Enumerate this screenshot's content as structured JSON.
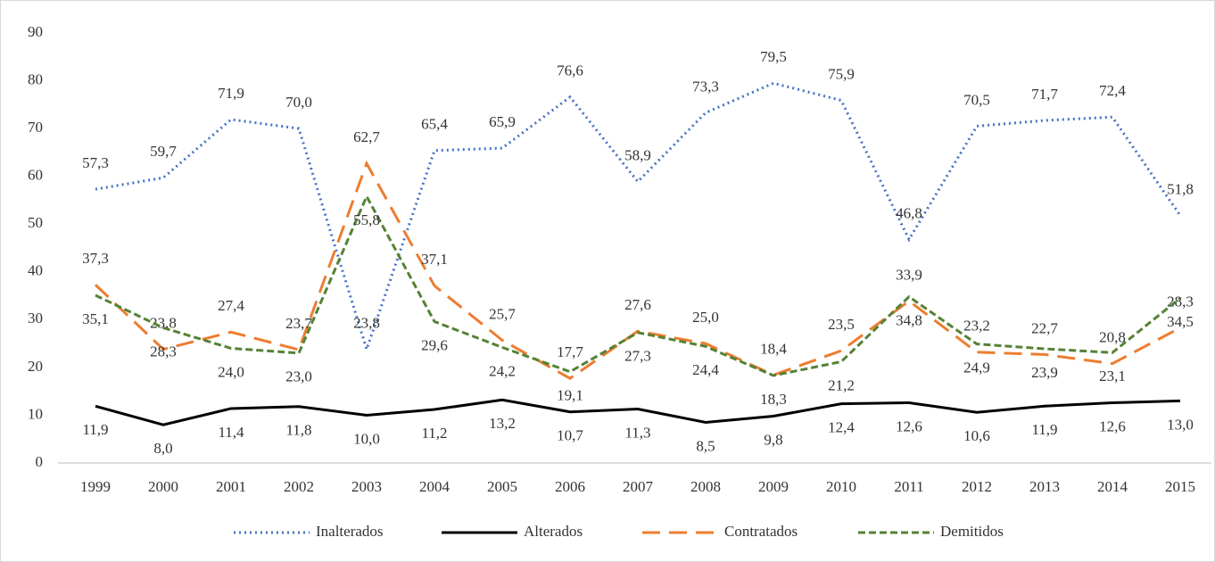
{
  "chart_data": {
    "type": "line",
    "categories": [
      "1999",
      "2000",
      "2001",
      "2002",
      "2003",
      "2004",
      "2005",
      "2006",
      "2007",
      "2008",
      "2009",
      "2010",
      "2011",
      "2012",
      "2013",
      "2014",
      "2015"
    ],
    "series": [
      {
        "name": "Inalterados",
        "color": "#4472c4",
        "style": "dotted",
        "values": [
          57.3,
          59.7,
          71.9,
          70.0,
          23.8,
          65.4,
          65.9,
          76.6,
          58.9,
          73.3,
          79.5,
          75.9,
          46.8,
          70.5,
          71.7,
          72.4,
          51.8
        ],
        "value_labels": [
          "57,3",
          "59,7",
          "71,9",
          "70,0",
          "23,8",
          "65,4",
          "65,9",
          "76,6",
          "58,9",
          "73,3",
          "79,5",
          "75,9",
          "46,8",
          "70,5",
          "71,7",
          "72,4",
          "51,8"
        ]
      },
      {
        "name": "Alterados",
        "color": "#000000",
        "style": "solid",
        "values": [
          11.9,
          8.0,
          11.4,
          11.8,
          10.0,
          11.2,
          13.2,
          10.7,
          11.3,
          8.5,
          9.8,
          12.4,
          12.6,
          10.6,
          11.9,
          12.6,
          13.0
        ],
        "value_labels": [
          "11,9",
          "8,0",
          "11,4",
          "11,8",
          "10,0",
          "11,2",
          "13,2",
          "10,7",
          "11,3",
          "8,5",
          "9,8",
          "12,4",
          "12,6",
          "10,6",
          "11,9",
          "12,6",
          "13,0"
        ]
      },
      {
        "name": "Contratados",
        "color": "#ed7d31",
        "style": "longdash",
        "values": [
          37.3,
          23.8,
          27.4,
          23.7,
          62.7,
          37.1,
          25.7,
          17.7,
          27.6,
          25.0,
          18.4,
          23.5,
          33.9,
          23.2,
          22.7,
          20.8,
          28.3
        ],
        "value_labels": [
          "37,3",
          "23,8",
          "27,4",
          "23,7",
          "62,7",
          "37,1",
          "25,7",
          "17,7",
          "27,6",
          "25,0",
          "18,4",
          "23,5",
          "33,9",
          "23,2",
          "22,7",
          "20,8",
          "28,3"
        ]
      },
      {
        "name": "Demitidos",
        "color": "#548235",
        "style": "dash",
        "values": [
          35.1,
          28.3,
          24.0,
          23.0,
          55.8,
          29.6,
          24.2,
          19.1,
          27.3,
          24.4,
          18.3,
          21.2,
          34.8,
          24.9,
          23.9,
          23.1,
          34.5
        ],
        "value_labels": [
          "35,1",
          "28,3",
          "24,0",
          "23,0",
          "55,8",
          "29,6",
          "24,2",
          "19,1",
          "27,3",
          "24,4",
          "18,3",
          "21,2",
          "34,8",
          "24,9",
          "23,9",
          "23,1",
          "34,5"
        ]
      }
    ],
    "ylim": [
      0,
      90
    ],
    "yticks": [
      0,
      10,
      20,
      30,
      40,
      50,
      60,
      70,
      80,
      90
    ],
    "grid": false,
    "legend": "bottom"
  }
}
